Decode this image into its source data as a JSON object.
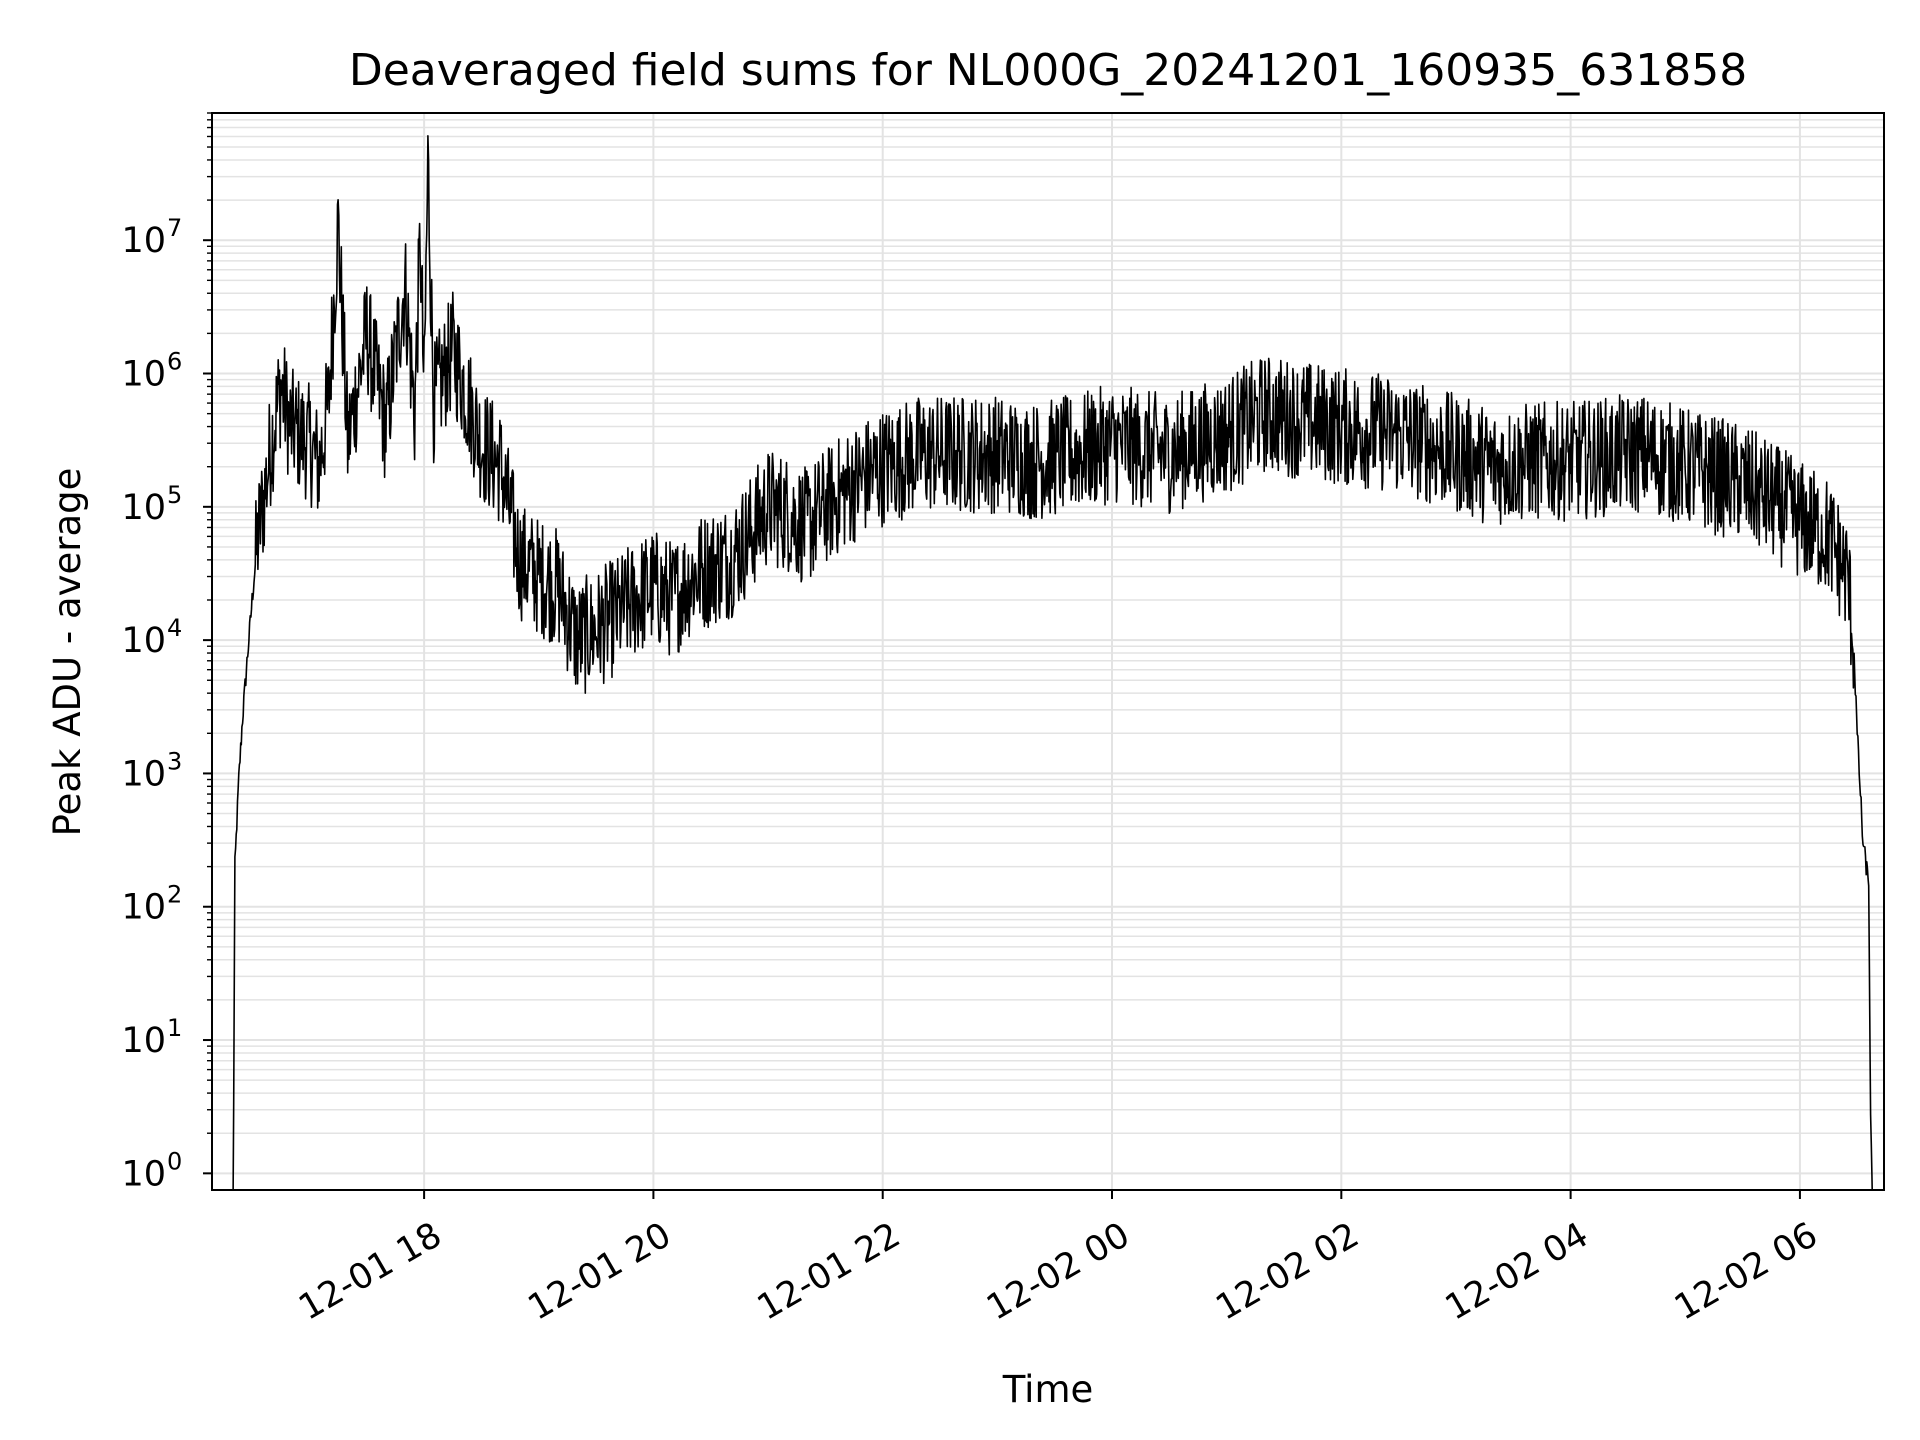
{
  "chart_data": {
    "type": "line",
    "title": "Deaveraged field sums for NL000G_20241201_160935_631858",
    "xlabel": "Time",
    "ylabel": "Peak ADU - average",
    "yscale": "log",
    "ylim": [
      0.75,
      90000000
    ],
    "xlim": [
      "2024-12-01 16:09",
      "2024-12-02 06:44"
    ],
    "grid": "on (major and minor, light gray)",
    "line_color": "#000000",
    "x_ticks": [
      "12-01 18",
      "12-01 20",
      "12-01 22",
      "12-02 00",
      "12-02 02",
      "12-02 04",
      "12-02 06"
    ],
    "y_ticks": [
      {
        "base": "10",
        "exp": "0"
      },
      {
        "base": "10",
        "exp": "1"
      },
      {
        "base": "10",
        "exp": "2"
      },
      {
        "base": "10",
        "exp": "3"
      },
      {
        "base": "10",
        "exp": "4"
      },
      {
        "base": "10",
        "exp": "5"
      },
      {
        "base": "10",
        "exp": "6"
      },
      {
        "base": "10",
        "exp": "7"
      }
    ],
    "series": [
      {
        "points": [
          [
            "2024-12-01 16:20",
            0.5
          ],
          [
            "2024-12-01 16:21",
            200
          ],
          [
            "2024-12-01 16:23",
            900
          ],
          [
            "2024-12-01 16:25",
            2600
          ],
          [
            "2024-12-01 16:27",
            6000
          ],
          [
            "2024-12-01 16:30",
            20000
          ],
          [
            "2024-12-01 16:33",
            60000
          ],
          [
            "2024-12-01 16:36",
            110000
          ],
          [
            "2024-12-01 16:40",
            300000
          ],
          [
            "2024-12-01 16:45",
            800000
          ],
          [
            "2024-12-01 16:50",
            400000
          ],
          [
            "2024-12-01 17:00",
            300000
          ],
          [
            "2024-12-01 17:05",
            200000
          ],
          [
            "2024-12-01 17:10",
            600000
          ],
          [
            "2024-12-01 17:15",
            13000000
          ],
          [
            "2024-12-01 17:20",
            300000
          ],
          [
            "2024-12-01 17:30",
            2000000
          ],
          [
            "2024-12-01 17:40",
            400000
          ],
          [
            "2024-12-01 17:50",
            4700000
          ],
          [
            "2024-12-01 17:55",
            500000
          ],
          [
            "2024-12-01 17:58",
            10000000
          ],
          [
            "2024-12-01 18:00",
            700000
          ],
          [
            "2024-12-01 18:02",
            40000000
          ],
          [
            "2024-12-01 18:05",
            600000
          ],
          [
            "2024-12-01 18:15",
            1500000
          ],
          [
            "2024-12-01 18:30",
            300000
          ],
          [
            "2024-12-01 18:40",
            200000
          ],
          [
            "2024-12-01 18:50",
            40000
          ],
          [
            "2024-12-01 19:00",
            30000
          ],
          [
            "2024-12-01 19:10",
            25000
          ],
          [
            "2024-12-01 19:20",
            10000
          ],
          [
            "2024-12-01 19:30",
            12000
          ],
          [
            "2024-12-01 19:40",
            15000
          ],
          [
            "2024-12-01 19:50",
            20000
          ],
          [
            "2024-12-01 20:00",
            25000
          ],
          [
            "2024-12-01 20:10",
            20000
          ],
          [
            "2024-12-01 20:20",
            30000
          ],
          [
            "2024-12-01 20:30",
            35000
          ],
          [
            "2024-12-01 20:40",
            40000
          ],
          [
            "2024-12-01 20:50",
            60000
          ],
          [
            "2024-12-01 21:00",
            100000
          ],
          [
            "2024-12-01 21:10",
            90000
          ],
          [
            "2024-12-01 21:20",
            70000
          ],
          [
            "2024-12-01 21:30",
            100000
          ],
          [
            "2024-12-01 21:45",
            150000
          ],
          [
            "2024-12-01 22:00",
            200000
          ],
          [
            "2024-12-01 22:20",
            250000
          ],
          [
            "2024-12-01 22:40",
            250000
          ],
          [
            "2024-12-01 23:00",
            250000
          ],
          [
            "2024-12-01 23:20",
            220000
          ],
          [
            "2024-12-01 23:40",
            250000
          ],
          [
            "2024-12-02 00:00",
            300000
          ],
          [
            "2024-12-02 00:30",
            250000
          ],
          [
            "2024-12-02 01:00",
            350000
          ],
          [
            "2024-12-02 01:20",
            500000
          ],
          [
            "2024-12-02 01:40",
            450000
          ],
          [
            "2024-12-02 02:00",
            400000
          ],
          [
            "2024-12-02 02:30",
            350000
          ],
          [
            "2024-12-02 03:00",
            250000
          ],
          [
            "2024-12-02 03:20",
            200000
          ],
          [
            "2024-12-02 03:40",
            220000
          ],
          [
            "2024-12-02 04:00",
            220000
          ],
          [
            "2024-12-02 04:30",
            250000
          ],
          [
            "2024-12-02 04:40",
            250000
          ],
          [
            "2024-12-02 05:00",
            200000
          ],
          [
            "2024-12-02 05:30",
            150000
          ],
          [
            "2024-12-02 05:50",
            100000
          ],
          [
            "2024-12-02 06:00",
            80000
          ],
          [
            "2024-12-02 06:15",
            60000
          ],
          [
            "2024-12-02 06:25",
            30000
          ],
          [
            "2024-12-02 06:28",
            10000
          ],
          [
            "2024-12-02 06:30",
            2000
          ],
          [
            "2024-12-02 06:33",
            300
          ],
          [
            "2024-12-02 06:36",
            150
          ],
          [
            "2024-12-02 06:37",
            2.5
          ],
          [
            "2024-12-02 06:38",
            0.5
          ]
        ]
      }
    ]
  }
}
